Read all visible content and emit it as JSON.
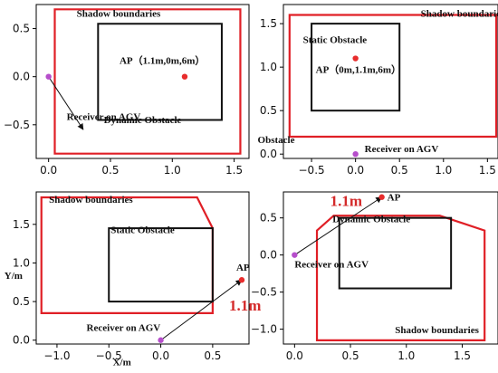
{
  "colors": {
    "shadow": "#e01f26",
    "obstacle": "#111111",
    "ap": "#e82c2c",
    "receiver": "#b64ecb",
    "arrow": "#111111",
    "distance": "#d42a2a"
  },
  "chart_data": [
    {
      "type": "scatter",
      "xlim": [
        -0.1,
        1.62
      ],
      "ylim": [
        -0.85,
        0.75
      ],
      "xticks": [
        0.0,
        0.5,
        1.0,
        1.5
      ],
      "yticks": [
        -0.5,
        0.0,
        0.5
      ],
      "shadow_boundary": {
        "label": "Shadow boundaries",
        "polygon": [
          [
            0.05,
            0.7
          ],
          [
            1.55,
            0.7
          ],
          [
            1.55,
            -0.8
          ],
          [
            0.05,
            -0.8
          ]
        ]
      },
      "obstacle": {
        "label": "Dynamic Obstacle",
        "rect": [
          0.4,
          -0.45,
          1.4,
          0.55
        ]
      },
      "ap": {
        "label": "AP（1.1m,0m,6m）",
        "point": [
          1.1,
          0.0
        ]
      },
      "receiver": {
        "label": "Receiver on AGV",
        "point": [
          0.0,
          0.0
        ]
      },
      "arrow": {
        "from": [
          0.0,
          0.0
        ],
        "to": [
          0.28,
          -0.55
        ]
      }
    },
    {
      "type": "scatter",
      "xlim": [
        -0.82,
        1.62
      ],
      "ylim": [
        -0.05,
        1.72
      ],
      "xticks": [
        -0.5,
        0.0,
        0.5,
        1.0,
        1.5
      ],
      "yticks": [
        0.0,
        0.5,
        1.0,
        1.5
      ],
      "shadow_boundary": {
        "label": "Shadow boundaries",
        "polygon": [
          [
            -0.75,
            1.6
          ],
          [
            1.6,
            1.6
          ],
          [
            1.6,
            0.2
          ],
          [
            -0.75,
            0.2
          ]
        ]
      },
      "obstacle": {
        "label": "Static Obstacle",
        "rect": [
          -0.5,
          0.5,
          0.5,
          1.5
        ]
      },
      "extra_label": "Obstacle",
      "ap": {
        "label": "AP（0m,1.1m,6m）",
        "point": [
          0.0,
          1.1
        ]
      },
      "receiver": {
        "label": "Receiver on AGV",
        "point": [
          0.0,
          0.0
        ]
      }
    },
    {
      "type": "scatter",
      "xlim": [
        -1.2,
        0.85
      ],
      "ylim": [
        -0.05,
        1.92
      ],
      "xticks": [
        -1.0,
        -0.5,
        0.0,
        0.5
      ],
      "yticks": [
        0.0,
        0.5,
        1.0,
        1.5
      ],
      "xlabel": "X/m",
      "ylabel": "Y/m",
      "shadow_boundary": {
        "label": "Shadow boundaries",
        "polygon": [
          [
            -1.15,
            1.85
          ],
          [
            0.35,
            1.85
          ],
          [
            0.5,
            1.45
          ],
          [
            0.5,
            0.35
          ],
          [
            -1.15,
            0.35
          ]
        ]
      },
      "obstacle": {
        "label": "Static Obstacle",
        "rect": [
          -0.5,
          0.5,
          0.5,
          1.45
        ]
      },
      "ap": {
        "label": "AP",
        "point": [
          0.78,
          0.78
        ]
      },
      "receiver": {
        "label": "Receiver on AGV",
        "point": [
          0.0,
          0.0
        ]
      },
      "arrow": {
        "from": [
          0.0,
          0.0
        ],
        "to": [
          0.78,
          0.78
        ]
      },
      "distance_label": "1.1m"
    },
    {
      "type": "scatter",
      "xlim": [
        -0.1,
        1.82
      ],
      "ylim": [
        -1.2,
        0.85
      ],
      "xticks": [
        0.0,
        0.5,
        1.0,
        1.5
      ],
      "yticks": [
        -1.0,
        -0.5,
        0.0,
        0.5
      ],
      "shadow_boundary": {
        "label": "Shadow boundaries",
        "polygon": [
          [
            0.2,
            -1.15
          ],
          [
            1.7,
            -1.15
          ],
          [
            1.7,
            0.33
          ],
          [
            1.3,
            0.53
          ],
          [
            0.35,
            0.53
          ],
          [
            0.2,
            0.33
          ]
        ]
      },
      "obstacle": {
        "label": "Dynamic Obstacle",
        "rect": [
          0.4,
          -0.45,
          1.4,
          0.5
        ]
      },
      "ap": {
        "label": "AP",
        "point": [
          0.78,
          0.78
        ]
      },
      "receiver": {
        "label": "Receiver on AGV",
        "point": [
          0.0,
          0.0
        ]
      },
      "arrow": {
        "from": [
          0.0,
          0.0
        ],
        "to": [
          0.78,
          0.78
        ]
      },
      "distance_label": "1.1m"
    }
  ]
}
